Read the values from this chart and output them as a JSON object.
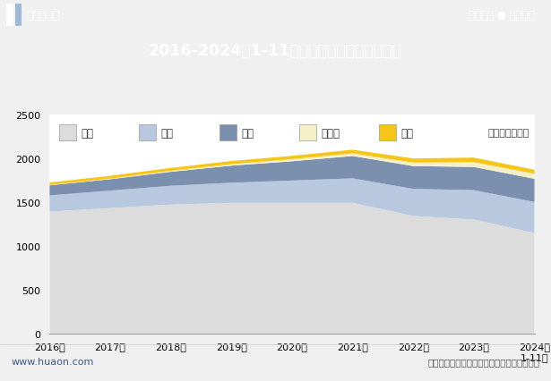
{
  "title": "2016-2024年1-11月辽宁省各发电类型发电量",
  "unit_label": "单位：亿千瓦时",
  "source_label": "数据来源：国家统计局，华经产业研究院整理",
  "website_left": "www.huaon.com",
  "header_left": "华经情报网",
  "header_right": "专业严谨 ● 客观科学",
  "x_labels": [
    "2016年",
    "2017年",
    "2018年",
    "2019年",
    "2020年",
    "2021年",
    "2022年",
    "2023年",
    "2024年\n1-11月"
  ],
  "series": {
    "火力": [
      1390,
      1430,
      1470,
      1490,
      1490,
      1490,
      1340,
      1300,
      1145
    ],
    "核能": [
      185,
      200,
      215,
      230,
      255,
      280,
      310,
      335,
      355
    ],
    "风力": [
      115,
      130,
      160,
      195,
      220,
      255,
      260,
      265,
      265
    ],
    "太阳能": [
      4,
      7,
      11,
      17,
      24,
      30,
      40,
      55,
      58
    ],
    "水力": [
      28,
      32,
      33,
      36,
      38,
      42,
      47,
      52,
      45
    ]
  },
  "colors": {
    "火力": "#dcdcdc",
    "核能": "#b8c8de",
    "风力": "#7b8faf",
    "太阳能": "#f5f0c5",
    "水力": "#f5c518"
  },
  "ylim": [
    0,
    2500
  ],
  "yticks": [
    0,
    500,
    1000,
    1500,
    2000,
    2500
  ],
  "header_bg": "#3c5a8c",
  "title_bg": "#4a6fa5",
  "chart_bg": "#ffffff",
  "outer_bg": "#f0f0f0"
}
